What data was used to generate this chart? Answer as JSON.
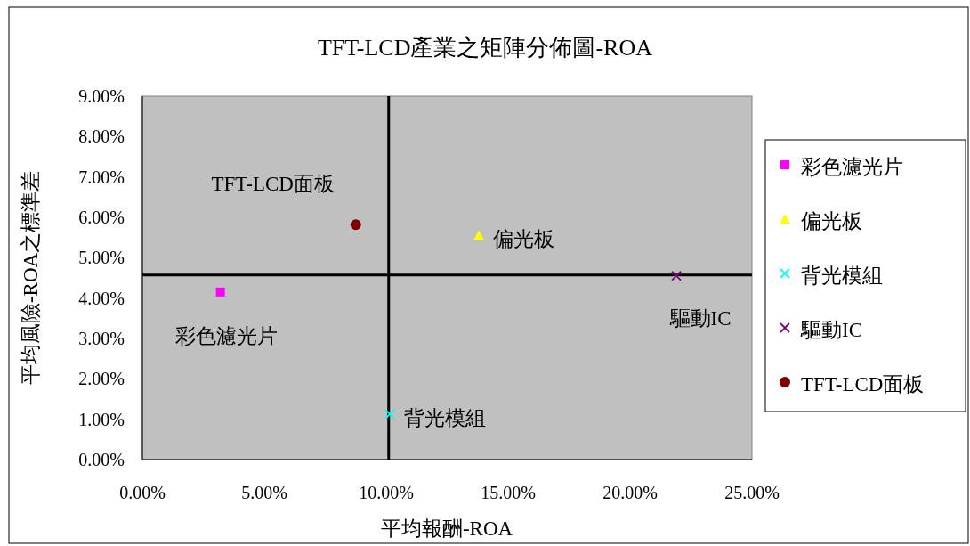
{
  "chart_data": {
    "type": "scatter",
    "title": "TFT-LCD產業之矩陣分佈圖-ROA",
    "xlabel": "平均報酬-ROA",
    "ylabel": "平均風險-ROA之標準差",
    "xlim": [
      0,
      25
    ],
    "ylim": [
      0,
      9
    ],
    "xticks": [
      {
        "value": 0,
        "label": "0.00%"
      },
      {
        "value": 5,
        "label": "5.00%"
      },
      {
        "value": 10,
        "label": "10.00%"
      },
      {
        "value": 15,
        "label": "15.00%"
      },
      {
        "value": 20,
        "label": "20.00%"
      },
      {
        "value": 25,
        "label": "25.00%"
      }
    ],
    "yticks": [
      {
        "value": 0,
        "label": "0.00%"
      },
      {
        "value": 1,
        "label": "1.00%"
      },
      {
        "value": 2,
        "label": "2.00%"
      },
      {
        "value": 3,
        "label": "3.00%"
      },
      {
        "value": 4,
        "label": "4.00%"
      },
      {
        "value": 5,
        "label": "5.00%"
      },
      {
        "value": 6,
        "label": "6.00%"
      },
      {
        "value": 7,
        "label": "7.00%"
      },
      {
        "value": 8,
        "label": "8.00%"
      },
      {
        "value": 9,
        "label": "9.00%"
      }
    ],
    "series": [
      {
        "name": "彩色濾光片",
        "color": "#ff00ff",
        "marker": "square",
        "x": [
          3.2
        ],
        "values": [
          4.15
        ]
      },
      {
        "name": "偏光板",
        "color": "#ffff00",
        "marker": "triangle",
        "x": [
          13.8
        ],
        "values": [
          5.55
        ]
      },
      {
        "name": "背光模組",
        "color": "#00ffff",
        "marker": "cross",
        "x": [
          10.15
        ],
        "values": [
          1.13
        ]
      },
      {
        "name": "驅動IC",
        "color": "#800080",
        "marker": "cross",
        "x": [
          21.9
        ],
        "values": [
          4.55
        ]
      },
      {
        "name": "TFT-LCD面板",
        "color": "#800000",
        "marker": "circle",
        "x": [
          8.75
        ],
        "values": [
          5.82
        ]
      }
    ],
    "ref_lines": [
      {
        "axis": "x",
        "value": 10.1,
        "color": "#000000"
      },
      {
        "axis": "y",
        "value": 4.57,
        "color": "#000000"
      }
    ],
    "annotations": [
      {
        "text": "TFT-LCD面板",
        "x": 8.75,
        "y": 5.82
      },
      {
        "text": "彩色濾光片",
        "x": 3.2,
        "y": 4.15
      },
      {
        "text": "偏光板",
        "x": 13.8,
        "y": 5.55
      },
      {
        "text": "背光模組",
        "x": 10.15,
        "y": 1.13
      },
      {
        "text": "驅動IC",
        "x": 21.9,
        "y": 4.55
      }
    ],
    "grid": false,
    "legend": "right"
  }
}
